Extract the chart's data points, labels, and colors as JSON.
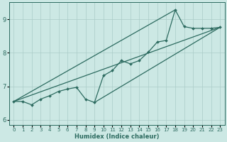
{
  "xlabel": "Humidex (Indice chaleur)",
  "bg_color": "#cce8e4",
  "line_color": "#2d6b60",
  "grid_color": "#aaccc8",
  "xlim": [
    -0.5,
    23.5
  ],
  "ylim": [
    5.85,
    9.5
  ],
  "xticks": [
    0,
    1,
    2,
    3,
    4,
    5,
    6,
    7,
    8,
    9,
    10,
    11,
    12,
    13,
    14,
    15,
    16,
    17,
    18,
    19,
    20,
    21,
    22,
    23
  ],
  "yticks": [
    6,
    7,
    8,
    9
  ],
  "zigzag_x": [
    0,
    1,
    2,
    3,
    4,
    5,
    6,
    7,
    8,
    9,
    10,
    11,
    12,
    13,
    14,
    15,
    16,
    17,
    18,
    19,
    20,
    21,
    22,
    23
  ],
  "zigzag_y": [
    6.55,
    6.55,
    6.45,
    6.62,
    6.72,
    6.85,
    6.92,
    6.97,
    6.62,
    6.52,
    7.32,
    7.47,
    7.77,
    7.67,
    7.77,
    8.02,
    8.32,
    8.37,
    9.28,
    8.78,
    8.73,
    8.73,
    8.73,
    8.76
  ],
  "line1_x": [
    0,
    23
  ],
  "line1_y": [
    6.55,
    8.76
  ],
  "line2_x": [
    0,
    18
  ],
  "line2_y": [
    6.55,
    9.28
  ],
  "line3_x": [
    9,
    23
  ],
  "line3_y": [
    6.52,
    8.76
  ],
  "marker": "D",
  "markersize": 2.0,
  "linewidth": 0.9,
  "xlabel_fontsize": 6.0,
  "tick_fontsize_x": 5.0,
  "tick_fontsize_y": 6.0
}
